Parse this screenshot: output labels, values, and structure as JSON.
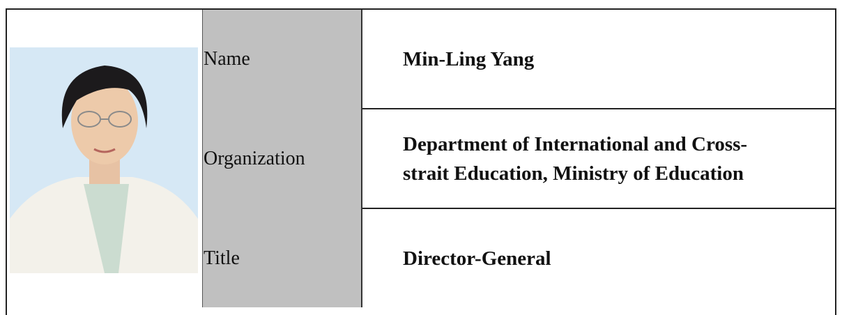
{
  "rows": [
    {
      "label": "Name",
      "value": "Min-Ling Yang"
    },
    {
      "label": "Organization",
      "value": "Department of International and Cross-strait Education, Ministry of Education"
    },
    {
      "label": "Title",
      "value": "Director-General"
    }
  ]
}
